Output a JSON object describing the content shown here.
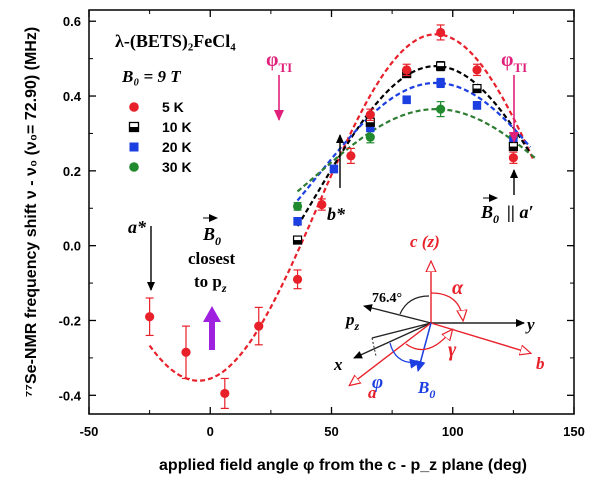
{
  "chart_data": {
    "type": "scatter",
    "title": "λ-(BETS)₂FeCl₄",
    "field_label": "B₀ = 9 T",
    "xlabel": "applied field angle φ from the c - p_z plane (deg)",
    "ylabel": "⁷⁷Se-NMR frequency shift  ν - ν₀ (ν₀= 72.90) (MHz)",
    "xlim": [
      -50,
      150
    ],
    "ylim": [
      -0.45,
      0.63
    ],
    "xticks": [
      -50,
      0,
      50,
      100,
      150
    ],
    "yticks": [
      -0.4,
      -0.2,
      0.0,
      0.2,
      0.4,
      0.6
    ],
    "legend_position": "upper-left",
    "series": [
      {
        "name": "5 K",
        "marker": "circle",
        "color": "#e8202a",
        "x": [
          -25,
          -10,
          6,
          20,
          36,
          46,
          58,
          66,
          81,
          95,
          110,
          125
        ],
        "y": [
          -0.19,
          -0.285,
          -0.395,
          -0.215,
          -0.09,
          0.11,
          0.24,
          0.35,
          0.47,
          0.57,
          0.47,
          0.235
        ],
        "yerr": [
          0.05,
          0.07,
          0.04,
          0.05,
          0.025,
          0.015,
          0.02,
          0.015,
          0.015,
          0.02,
          0.015,
          0.015
        ],
        "fit_color": "#e8202a"
      },
      {
        "name": "10 K",
        "marker": "half-square",
        "color": "#000000",
        "x": [
          36,
          66,
          81,
          95,
          110,
          125
        ],
        "y": [
          0.015,
          0.33,
          0.46,
          0.48,
          0.42,
          0.265
        ],
        "yerr": [
          0.01,
          0.01,
          0.01,
          0.012,
          0.01,
          0.01
        ],
        "fit_color": "#000000"
      },
      {
        "name": "20 K",
        "marker": "square",
        "color": "#1b3fe0",
        "x": [
          36,
          51,
          66,
          81,
          95,
          110,
          125
        ],
        "y": [
          0.065,
          0.205,
          0.315,
          0.39,
          0.435,
          0.375,
          0.28
        ],
        "yerr": [
          0.01,
          0.01,
          0.01,
          0.01,
          0.012,
          0.01,
          0.01
        ],
        "fit_color": "#1b3fe0"
      },
      {
        "name": "30 K",
        "marker": "circle",
        "color": "#218a2e",
        "x": [
          36,
          66,
          95,
          125
        ],
        "y": [
          0.105,
          0.29,
          0.365,
          0.29
        ],
        "yerr": [
          0.01,
          0.015,
          0.02,
          0.01
        ],
        "fit_color": "#2e7d32"
      }
    ],
    "annotations": {
      "phi_ti": "φ",
      "phi_ti_sub": "TI",
      "a_star": "a*",
      "b_star": "b*",
      "b0_parallel": "B",
      "b0_parallel_sub": "0",
      "b0_parallel_rest": "|| a′",
      "b0_closest_line1": "B",
      "b0_closest_sub": "0",
      "b0_closest_line2": "closest",
      "b0_closest_line3": "to p",
      "b0_closest_line3_sub": "z",
      "angle_label": "76.4°"
    },
    "inset_labels": {
      "c_z": "c (z)",
      "alpha": "α",
      "gamma": "γ",
      "phi": "φ",
      "y": "y",
      "x": "x",
      "p_z": "p",
      "p_z_sub": "z",
      "a": "a",
      "b": "b",
      "b0": "B",
      "b0_sub": "0"
    },
    "colors": {
      "t5": "#e8202a",
      "t10": "#000000",
      "t20": "#1b3fe0",
      "t30": "#218a2e",
      "phi_arrow": "#e0207a",
      "closest_arrow": "#a020e0"
    }
  }
}
